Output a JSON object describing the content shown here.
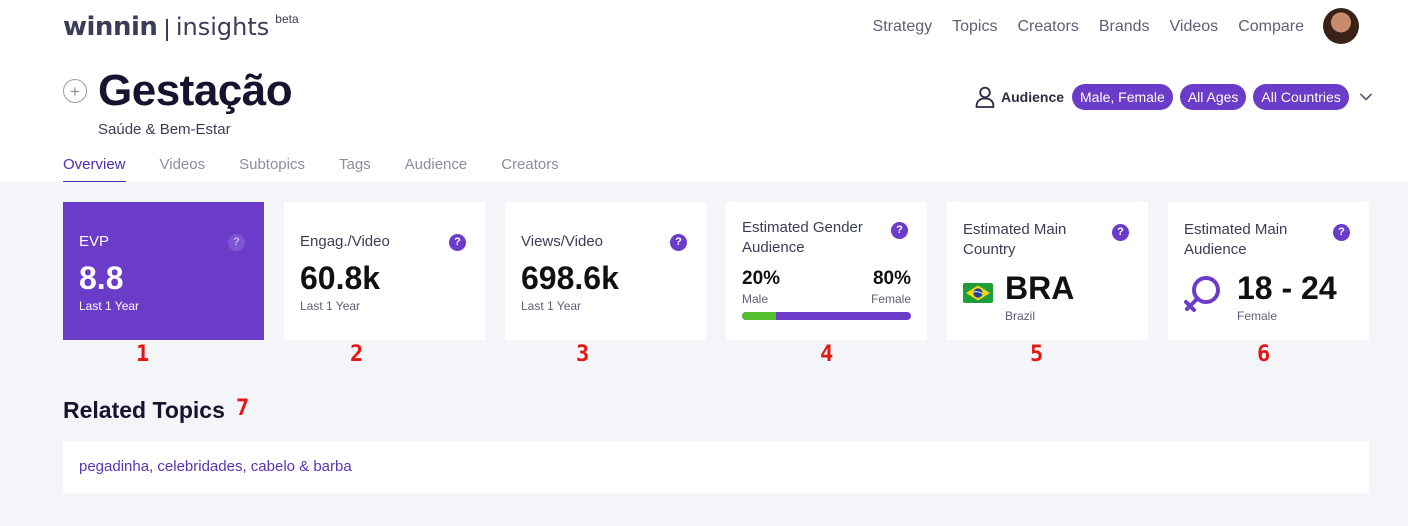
{
  "header": {
    "brand": "winnin",
    "product": "insights",
    "badge": "beta",
    "nav": [
      "Strategy",
      "Topics",
      "Creators",
      "Brands",
      "Videos",
      "Compare"
    ]
  },
  "page": {
    "title": "Gestação",
    "subtitle": "Saúde & Bem-Estar"
  },
  "audience_filter": {
    "label": "Audience",
    "gender": "Male, Female",
    "ages": "All Ages",
    "countries": "All Countries"
  },
  "tabs": [
    "Overview",
    "Videos",
    "Subtopics",
    "Tags",
    "Audience",
    "Creators"
  ],
  "cards": {
    "evp": {
      "title": "EVP",
      "value": "8.8",
      "period": "Last 1 Year"
    },
    "engagement": {
      "title": "Engag./Video",
      "value": "60.8k",
      "period": "Last 1 Year"
    },
    "views": {
      "title": "Views/Video",
      "value": "698.6k",
      "period": "Last 1 Year"
    },
    "gender": {
      "title": "Estimated Gender Audience",
      "male_pct": "20%",
      "female_pct": "80%",
      "male_label": "Male",
      "female_label": "Female",
      "male_fraction": 0.2
    },
    "country": {
      "title": "Estimated Main Country",
      "code": "BRA",
      "name": "Brazil"
    },
    "main_audience": {
      "title": "Estimated Main Audience",
      "age_range": "18 - 24",
      "gender": "Female"
    },
    "help_glyph": "?"
  },
  "markers": [
    "1",
    "2",
    "3",
    "4",
    "5",
    "6",
    "7"
  ],
  "related": {
    "title": "Related Topics",
    "topics": "pegadinha, celebridades, cabelo & barba"
  },
  "colors": {
    "accent": "#6b3cc9",
    "tab_active": "#4a2fb8",
    "male_bar": "#55c02f",
    "marker": "#e31515",
    "background": "#f4f5f9"
  }
}
